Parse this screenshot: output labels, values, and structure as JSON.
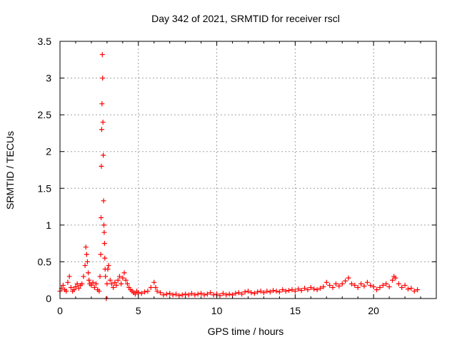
{
  "chart_data": {
    "type": "scatter",
    "title": "Day 342 of 2021, SRMTID for receiver rscl",
    "xlabel": "GPS time / hours",
    "ylabel": "SRMTID / TECUs",
    "xlim": [
      0,
      24
    ],
    "ylim": [
      0,
      3.5
    ],
    "xticks": [
      0,
      5,
      10,
      15,
      20
    ],
    "yticks": [
      0,
      0.5,
      1,
      1.5,
      2,
      2.5,
      3,
      3.5
    ],
    "xtick_labels": [
      "0",
      "5",
      "10",
      "15",
      "20"
    ],
    "ytick_labels": [
      "0",
      "0.5",
      "1",
      "1.5",
      "2",
      "2.5",
      "3",
      "3.5"
    ],
    "grid": true,
    "marker": "+",
    "series": [
      {
        "name": "rscl",
        "color": "#ff0000",
        "x": [
          0.0,
          0.1,
          0.2,
          0.3,
          0.4,
          0.5,
          0.6,
          0.7,
          0.8,
          0.9,
          1.0,
          1.1,
          1.2,
          1.3,
          1.4,
          1.5,
          1.6,
          1.65,
          1.7,
          1.75,
          1.8,
          1.85,
          1.9,
          2.0,
          2.1,
          2.2,
          2.3,
          2.4,
          2.5,
          2.55,
          2.6,
          2.62,
          2.64,
          2.66,
          2.68,
          2.7,
          2.72,
          2.74,
          2.76,
          2.78,
          2.8,
          2.82,
          2.84,
          2.86,
          2.88,
          2.9,
          2.95,
          3.0,
          3.05,
          3.1,
          3.2,
          3.3,
          3.4,
          3.5,
          3.6,
          3.7,
          3.8,
          3.9,
          4.0,
          4.1,
          4.2,
          4.3,
          4.4,
          4.5,
          4.6,
          4.7,
          4.8,
          4.9,
          5.0,
          5.2,
          5.4,
          5.6,
          5.8,
          6.0,
          6.1,
          6.2,
          6.4,
          6.6,
          6.8,
          7.0,
          7.2,
          7.4,
          7.6,
          7.8,
          8.0,
          8.2,
          8.4,
          8.6,
          8.8,
          9.0,
          9.2,
          9.4,
          9.6,
          9.8,
          10.0,
          10.2,
          10.4,
          10.6,
          10.8,
          11.0,
          11.2,
          11.4,
          11.6,
          11.8,
          12.0,
          12.2,
          12.4,
          12.6,
          12.8,
          13.0,
          13.2,
          13.4,
          13.6,
          13.8,
          14.0,
          14.2,
          14.4,
          14.6,
          14.8,
          15.0,
          15.2,
          15.4,
          15.6,
          15.8,
          16.0,
          16.2,
          16.4,
          16.6,
          16.8,
          17.0,
          17.2,
          17.4,
          17.6,
          17.8,
          18.0,
          18.2,
          18.4,
          18.6,
          18.8,
          19.0,
          19.2,
          19.4,
          19.6,
          19.8,
          20.0,
          20.2,
          20.4,
          20.6,
          20.8,
          21.0,
          21.2,
          21.3,
          21.4,
          21.6,
          21.8,
          22.0,
          22.2,
          22.4,
          22.6,
          22.8
        ],
        "y": [
          0.1,
          0.14,
          0.18,
          0.12,
          0.1,
          0.22,
          0.3,
          0.15,
          0.1,
          0.12,
          0.16,
          0.2,
          0.14,
          0.18,
          0.2,
          0.3,
          0.45,
          0.7,
          0.6,
          0.5,
          0.35,
          0.25,
          0.2,
          0.18,
          0.22,
          0.15,
          0.2,
          0.12,
          0.1,
          0.3,
          0.6,
          1.1,
          1.8,
          2.3,
          2.65,
          3.32,
          3.0,
          2.4,
          1.95,
          1.33,
          1.0,
          0.9,
          0.75,
          0.55,
          0.4,
          0.3,
          0.0,
          0.2,
          0.4,
          0.45,
          0.25,
          0.2,
          0.15,
          0.22,
          0.18,
          0.25,
          0.3,
          0.2,
          0.28,
          0.35,
          0.25,
          0.2,
          0.15,
          0.12,
          0.1,
          0.08,
          0.06,
          0.1,
          0.08,
          0.07,
          0.09,
          0.1,
          0.15,
          0.22,
          0.15,
          0.1,
          0.08,
          0.05,
          0.06,
          0.07,
          0.05,
          0.06,
          0.04,
          0.05,
          0.06,
          0.05,
          0.07,
          0.05,
          0.06,
          0.07,
          0.05,
          0.06,
          0.08,
          0.05,
          0.06,
          0.04,
          0.07,
          0.05,
          0.06,
          0.05,
          0.07,
          0.08,
          0.06,
          0.09,
          0.1,
          0.08,
          0.07,
          0.09,
          0.1,
          0.08,
          0.1,
          0.09,
          0.11,
          0.1,
          0.09,
          0.12,
          0.1,
          0.11,
          0.12,
          0.1,
          0.13,
          0.11,
          0.14,
          0.12,
          0.15,
          0.13,
          0.12,
          0.14,
          0.16,
          0.22,
          0.18,
          0.15,
          0.2,
          0.17,
          0.2,
          0.24,
          0.28,
          0.2,
          0.18,
          0.15,
          0.2,
          0.17,
          0.22,
          0.18,
          0.16,
          0.12,
          0.15,
          0.18,
          0.2,
          0.16,
          0.25,
          0.3,
          0.28,
          0.2,
          0.15,
          0.18,
          0.13,
          0.14,
          0.1,
          0.12
        ]
      }
    ]
  }
}
